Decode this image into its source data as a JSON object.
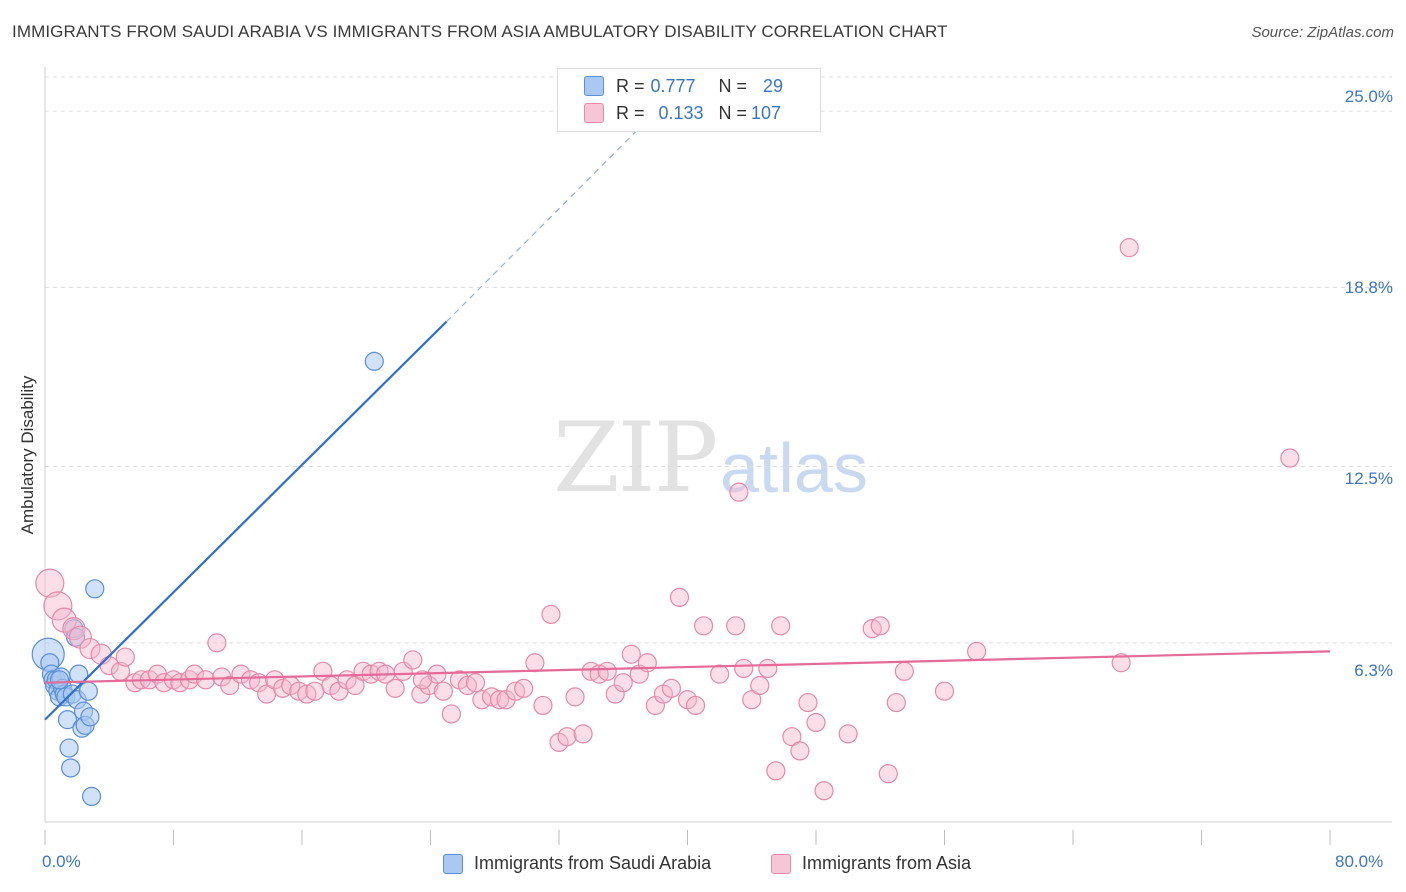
{
  "header": {
    "title": "IMMIGRANTS FROM SAUDI ARABIA VS IMMIGRANTS FROM ASIA AMBULATORY DISABILITY CORRELATION CHART",
    "source": "Source: ZipAtlas.com"
  },
  "watermark": {
    "zip": "ZIP",
    "atlas": "atlas"
  },
  "legend": {
    "rows": [
      {
        "r_label": "R =",
        "r_value": "0.777",
        "n_label": "N =",
        "n_value": "29"
      },
      {
        "r_label": "R =",
        "r_value": "0.133",
        "n_label": "N =",
        "n_value": "107"
      }
    ]
  },
  "colors": {
    "blue_fill": "#a9c8f2",
    "blue_stroke": "#5b8fd6",
    "blue_line": "#2f6fd0",
    "pink_fill": "#f7b6cb",
    "pink_stroke": "#e68aa8",
    "pink_line": "#e46a98",
    "grid": "#dcdcdc",
    "tick_text": "#3b76c4"
  },
  "chart_data": {
    "type": "scatter",
    "title": "IMMIGRANTS FROM SAUDI ARABIA VS IMMIGRANTS FROM ASIA AMBULATORY DISABILITY CORRELATION CHART",
    "xlabel": "",
    "ylabel": "Ambulatory Disability",
    "xlim": [
      0,
      80
    ],
    "ylim": [
      0,
      26.2
    ],
    "x_tick_labels": [
      "0.0%",
      "80.0%"
    ],
    "y_ticks": [
      6.3,
      12.5,
      18.8,
      25.0
    ],
    "y_tick_labels": [
      "6.3%",
      "12.5%",
      "18.8%",
      "25.0%"
    ],
    "series": [
      {
        "name": "Immigrants from Saudi Arabia",
        "R": 0.777,
        "N": 29,
        "points": [
          [
            0.2,
            5.9,
            16
          ],
          [
            0.3,
            5.6,
            9
          ],
          [
            0.4,
            5.2,
            9
          ],
          [
            0.5,
            5.0,
            9
          ],
          [
            0.6,
            4.8,
            9
          ],
          [
            0.7,
            5.0,
            9
          ],
          [
            0.8,
            4.6,
            9
          ],
          [
            0.9,
            4.4,
            9
          ],
          [
            1.0,
            5.1,
            9
          ],
          [
            1.1,
            4.7,
            9
          ],
          [
            1.2,
            4.5,
            9
          ],
          [
            1.3,
            4.4,
            9
          ],
          [
            1.4,
            3.6,
            9
          ],
          [
            1.5,
            2.6,
            9
          ],
          [
            1.6,
            1.9,
            9
          ],
          [
            1.7,
            4.5,
            9
          ],
          [
            1.8,
            6.8,
            9
          ],
          [
            1.9,
            6.5,
            9
          ],
          [
            2.0,
            4.3,
            9
          ],
          [
            2.1,
            5.2,
            9
          ],
          [
            2.3,
            3.3,
            9
          ],
          [
            2.4,
            3.9,
            9
          ],
          [
            2.5,
            3.4,
            9
          ],
          [
            2.7,
            4.6,
            9
          ],
          [
            2.8,
            3.7,
            9
          ],
          [
            3.1,
            8.2,
            9
          ],
          [
            2.9,
            0.9,
            9
          ],
          [
            20.5,
            16.2,
            9
          ],
          [
            0.9,
            5.0,
            9
          ]
        ],
        "trend": {
          "x0": 0,
          "y0": 3.6,
          "x1": 25,
          "y1": 17.6,
          "dash_x1": 37,
          "dash_y1": 24.4
        }
      },
      {
        "name": "Immigrants from Asia",
        "R": 0.133,
        "N": 107,
        "points": [
          [
            0.3,
            8.4,
            14
          ],
          [
            0.8,
            7.6,
            14
          ],
          [
            1.2,
            7.1,
            12
          ],
          [
            1.8,
            6.8,
            11
          ],
          [
            2.2,
            6.5,
            11
          ],
          [
            2.8,
            6.1,
            10
          ],
          [
            3.5,
            5.9,
            10
          ],
          [
            4.0,
            5.5,
            9
          ],
          [
            4.7,
            5.3,
            9
          ],
          [
            5.0,
            5.8,
            9
          ],
          [
            5.6,
            4.9,
            9
          ],
          [
            6.0,
            5.0,
            9
          ],
          [
            6.5,
            5.0,
            9
          ],
          [
            7.0,
            5.2,
            9
          ],
          [
            7.4,
            4.9,
            9
          ],
          [
            8.0,
            5.0,
            9
          ],
          [
            8.4,
            4.9,
            9
          ],
          [
            9.0,
            5.0,
            9
          ],
          [
            9.3,
            5.2,
            9
          ],
          [
            10.0,
            5.0,
            9
          ],
          [
            10.7,
            6.3,
            9
          ],
          [
            11.0,
            5.1,
            9
          ],
          [
            11.5,
            4.8,
            9
          ],
          [
            12.2,
            5.2,
            9
          ],
          [
            12.8,
            5.0,
            9
          ],
          [
            13.3,
            4.9,
            9
          ],
          [
            13.8,
            4.5,
            9
          ],
          [
            14.3,
            5.0,
            9
          ],
          [
            14.8,
            4.7,
            9
          ],
          [
            15.3,
            4.8,
            9
          ],
          [
            15.8,
            4.6,
            9
          ],
          [
            16.3,
            4.5,
            9
          ],
          [
            16.8,
            4.6,
            9
          ],
          [
            17.3,
            5.3,
            9
          ],
          [
            17.8,
            4.8,
            9
          ],
          [
            18.3,
            4.6,
            9
          ],
          [
            18.8,
            5.0,
            9
          ],
          [
            19.3,
            4.8,
            9
          ],
          [
            19.8,
            5.3,
            9
          ],
          [
            20.3,
            5.2,
            9
          ],
          [
            20.8,
            5.3,
            9
          ],
          [
            21.2,
            5.2,
            9
          ],
          [
            21.8,
            4.7,
            9
          ],
          [
            22.3,
            5.3,
            9
          ],
          [
            22.9,
            5.7,
            9
          ],
          [
            23.4,
            4.5,
            9
          ],
          [
            23.9,
            4.8,
            9
          ],
          [
            24.4,
            5.2,
            9
          ],
          [
            24.8,
            4.6,
            9
          ],
          [
            25.3,
            3.8,
            9
          ],
          [
            25.8,
            5.0,
            9
          ],
          [
            26.3,
            4.8,
            9
          ],
          [
            26.8,
            4.9,
            9
          ],
          [
            27.2,
            4.3,
            9
          ],
          [
            27.8,
            4.4,
            9
          ],
          [
            28.3,
            4.3,
            9
          ],
          [
            28.7,
            4.3,
            9
          ],
          [
            29.3,
            4.6,
            9
          ],
          [
            29.8,
            4.7,
            9
          ],
          [
            30.5,
            5.6,
            9
          ],
          [
            31.0,
            4.1,
            9
          ],
          [
            31.5,
            7.3,
            9
          ],
          [
            32.0,
            2.8,
            9
          ],
          [
            32.5,
            3.0,
            9
          ],
          [
            33.0,
            4.4,
            9
          ],
          [
            33.5,
            3.1,
            9
          ],
          [
            34.0,
            5.3,
            9
          ],
          [
            34.5,
            5.2,
            9
          ],
          [
            35.0,
            5.3,
            9
          ],
          [
            35.5,
            4.5,
            9
          ],
          [
            36.0,
            4.9,
            9
          ],
          [
            36.5,
            5.9,
            9
          ],
          [
            37.0,
            5.2,
            9
          ],
          [
            37.5,
            5.6,
            9
          ],
          [
            38.0,
            4.1,
            9
          ],
          [
            38.5,
            4.5,
            9
          ],
          [
            39.0,
            4.7,
            9
          ],
          [
            39.5,
            7.9,
            9
          ],
          [
            40.0,
            4.3,
            9
          ],
          [
            40.5,
            4.1,
            9
          ],
          [
            41.0,
            6.9,
            9
          ],
          [
            42.0,
            5.2,
            9
          ],
          [
            43.0,
            6.9,
            9
          ],
          [
            43.5,
            5.4,
            9
          ],
          [
            44.0,
            4.3,
            9
          ],
          [
            44.5,
            4.8,
            9
          ],
          [
            45.0,
            5.4,
            9
          ],
          [
            45.5,
            1.8,
            9
          ],
          [
            45.8,
            6.9,
            9
          ],
          [
            46.5,
            3.0,
            9
          ],
          [
            47.0,
            2.5,
            9
          ],
          [
            47.5,
            4.2,
            9
          ],
          [
            48.0,
            3.5,
            9
          ],
          [
            48.5,
            1.1,
            9
          ],
          [
            50.0,
            3.1,
            9
          ],
          [
            51.5,
            6.8,
            9
          ],
          [
            52.0,
            6.9,
            9
          ],
          [
            52.5,
            1.7,
            9
          ],
          [
            53.0,
            4.2,
            9
          ],
          [
            53.5,
            5.3,
            9
          ],
          [
            56.0,
            4.6,
            9
          ],
          [
            58.0,
            6.0,
            9
          ],
          [
            67.0,
            5.6,
            9
          ],
          [
            67.5,
            20.2,
            9
          ],
          [
            77.5,
            12.8,
            9
          ],
          [
            43.2,
            11.6,
            9
          ],
          [
            23.5,
            5.0,
            9
          ]
        ],
        "trend": {
          "x0": 0,
          "y0": 4.9,
          "x1": 80,
          "y1": 6.0
        }
      }
    ]
  },
  "bottom_legend": {
    "items": [
      {
        "label": "Immigrants from Saudi Arabia"
      },
      {
        "label": "Immigrants from Asia"
      }
    ]
  }
}
